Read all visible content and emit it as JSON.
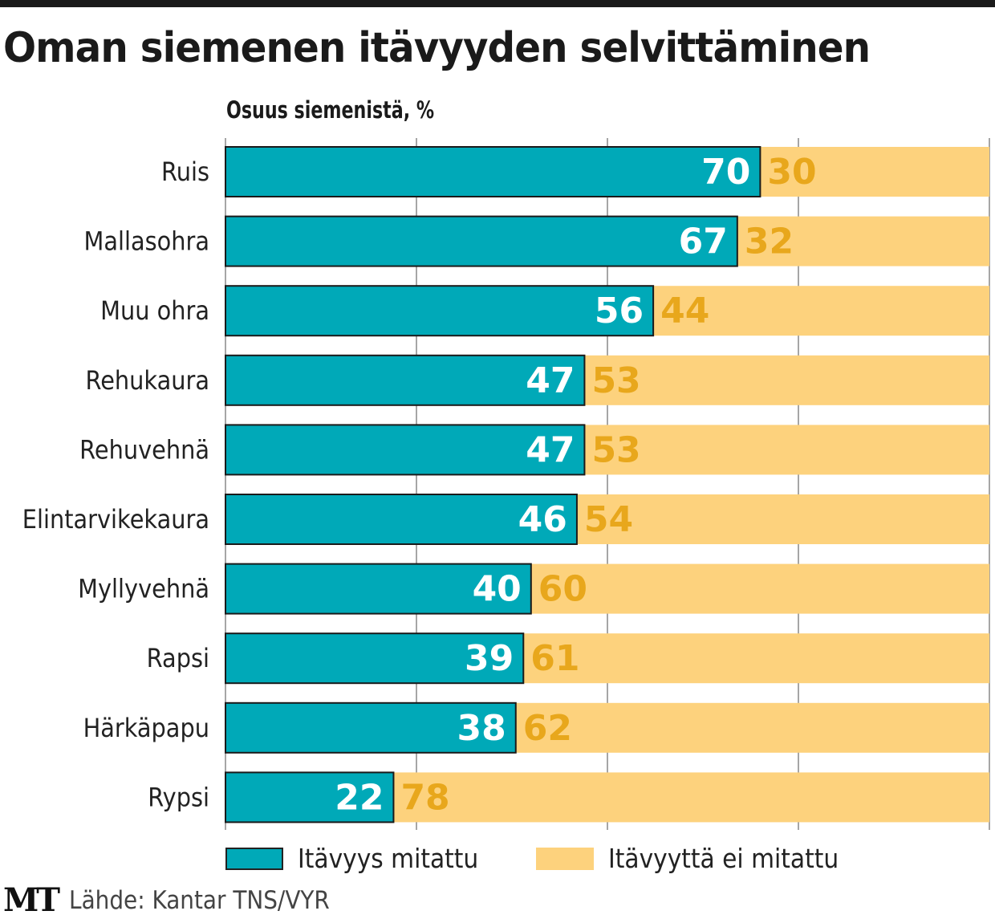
{
  "chart_data": {
    "type": "bar",
    "orientation": "horizontal",
    "stacked": true,
    "title": "Oman siemenen itävyyden selvittäminen",
    "subtitle": "Osuus siemenistä, %",
    "categories": [
      "Ruis",
      "Mallasohra",
      "Muu ohra",
      "Rehukaura",
      "Rehuvehnä",
      "Elintarvikekaura",
      "Myllyvehnä",
      "Rapsi",
      "Härkäpapu",
      "Rypsi"
    ],
    "series": [
      {
        "name": "Itävyys mitattu",
        "color": "#00a9b8",
        "label_color": "#ffffff",
        "values": [
          70,
          67,
          56,
          47,
          47,
          46,
          40,
          39,
          38,
          22
        ]
      },
      {
        "name": "Itävyyttä ei mitattu",
        "color": "#fdd27d",
        "label_color": "#e8a71c",
        "values": [
          30,
          32,
          44,
          53,
          53,
          54,
          60,
          61,
          62,
          78
        ]
      }
    ],
    "xlim": [
      0,
      100
    ],
    "grid": true,
    "legend": "bottom"
  },
  "source": "Lähde: Kantar TNS/VYR",
  "logo": "MT"
}
